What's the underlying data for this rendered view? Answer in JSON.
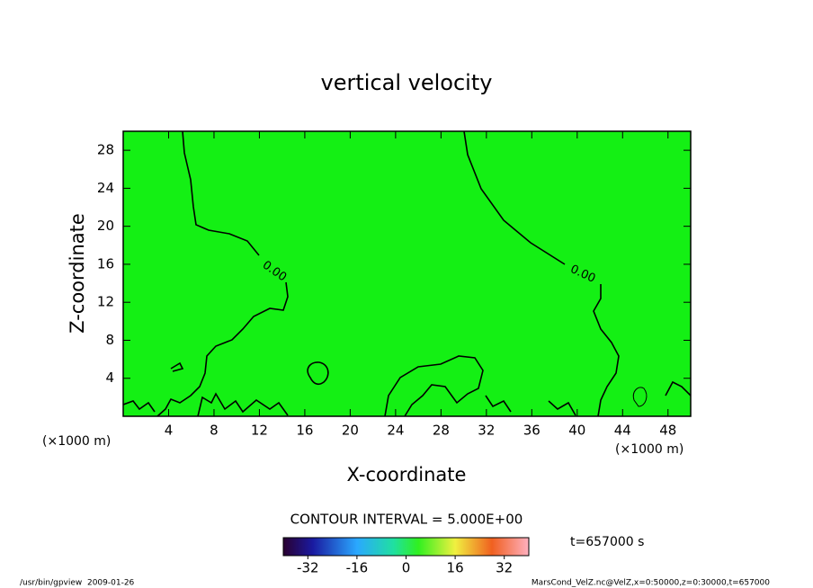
{
  "chart_data": {
    "type": "contour",
    "title": "vertical velocity",
    "x_label": "X-coordinate",
    "y_label": "Z-coordinate",
    "x_unit": "(×1000 m)",
    "y_unit": "(×1000 m)",
    "xlim": [
      0,
      50
    ],
    "ylim": [
      0,
      30
    ],
    "xticks": [
      4,
      8,
      12,
      16,
      20,
      24,
      28,
      32,
      36,
      40,
      44,
      48
    ],
    "yticks": [
      4,
      8,
      12,
      16,
      20,
      24,
      28
    ],
    "field_color": "#14f014",
    "contour_level": {
      "value": 0,
      "label": "0.00"
    },
    "contour_interval": "CONTOUR INTERVAL = 5.000E+00",
    "time_label": "t=657000 s",
    "clim": [
      -40,
      40
    ],
    "colorbar_ticks": [
      -32,
      -16,
      0,
      16,
      32
    ],
    "footer_left": "/usr/bin/gpview  2009-01-26",
    "footer_right": "MarsCond_VelZ.nc@VelZ,x=0:50000,z=0:30000,t=657000"
  }
}
